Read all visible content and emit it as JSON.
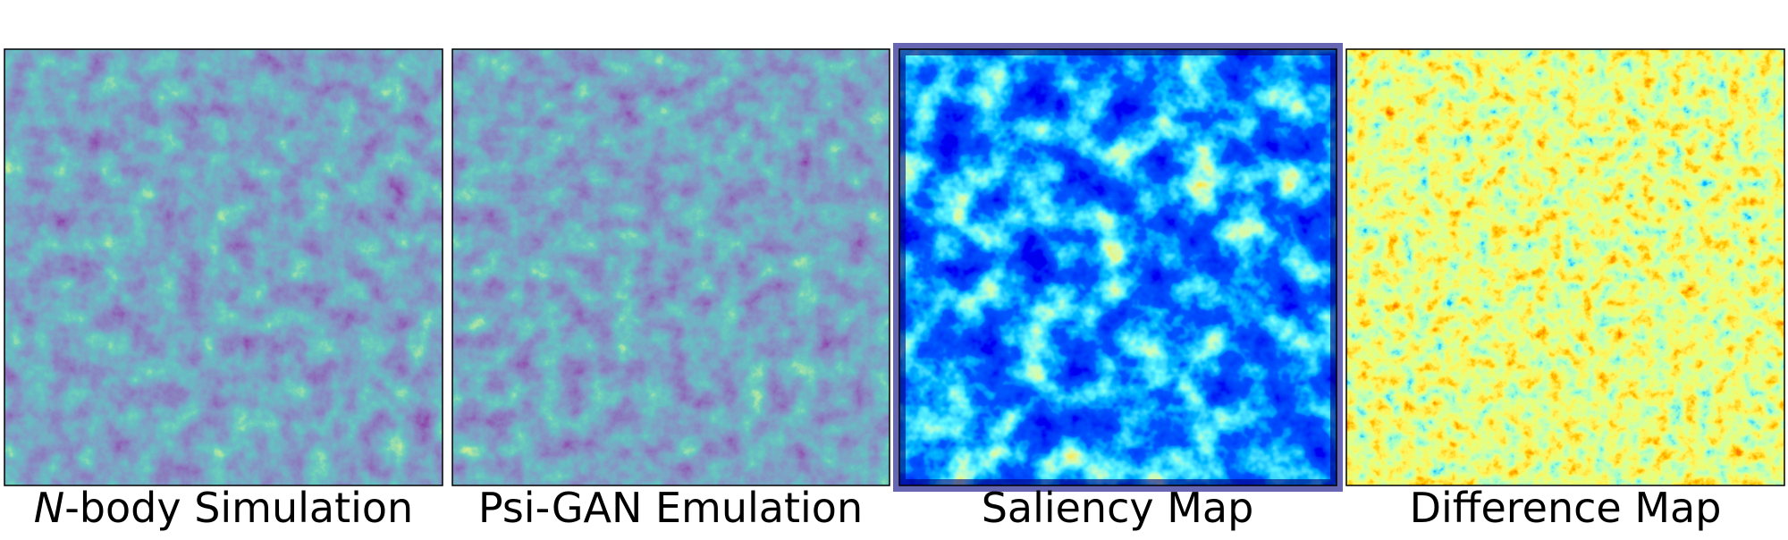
{
  "panels": [
    {
      "label_italic": "N",
      "label": "-body Simulation"
    },
    {
      "label": "Psi-GAN Emulation"
    },
    {
      "label": "Saliency Map"
    },
    {
      "label": "Difference Map"
    }
  ]
}
